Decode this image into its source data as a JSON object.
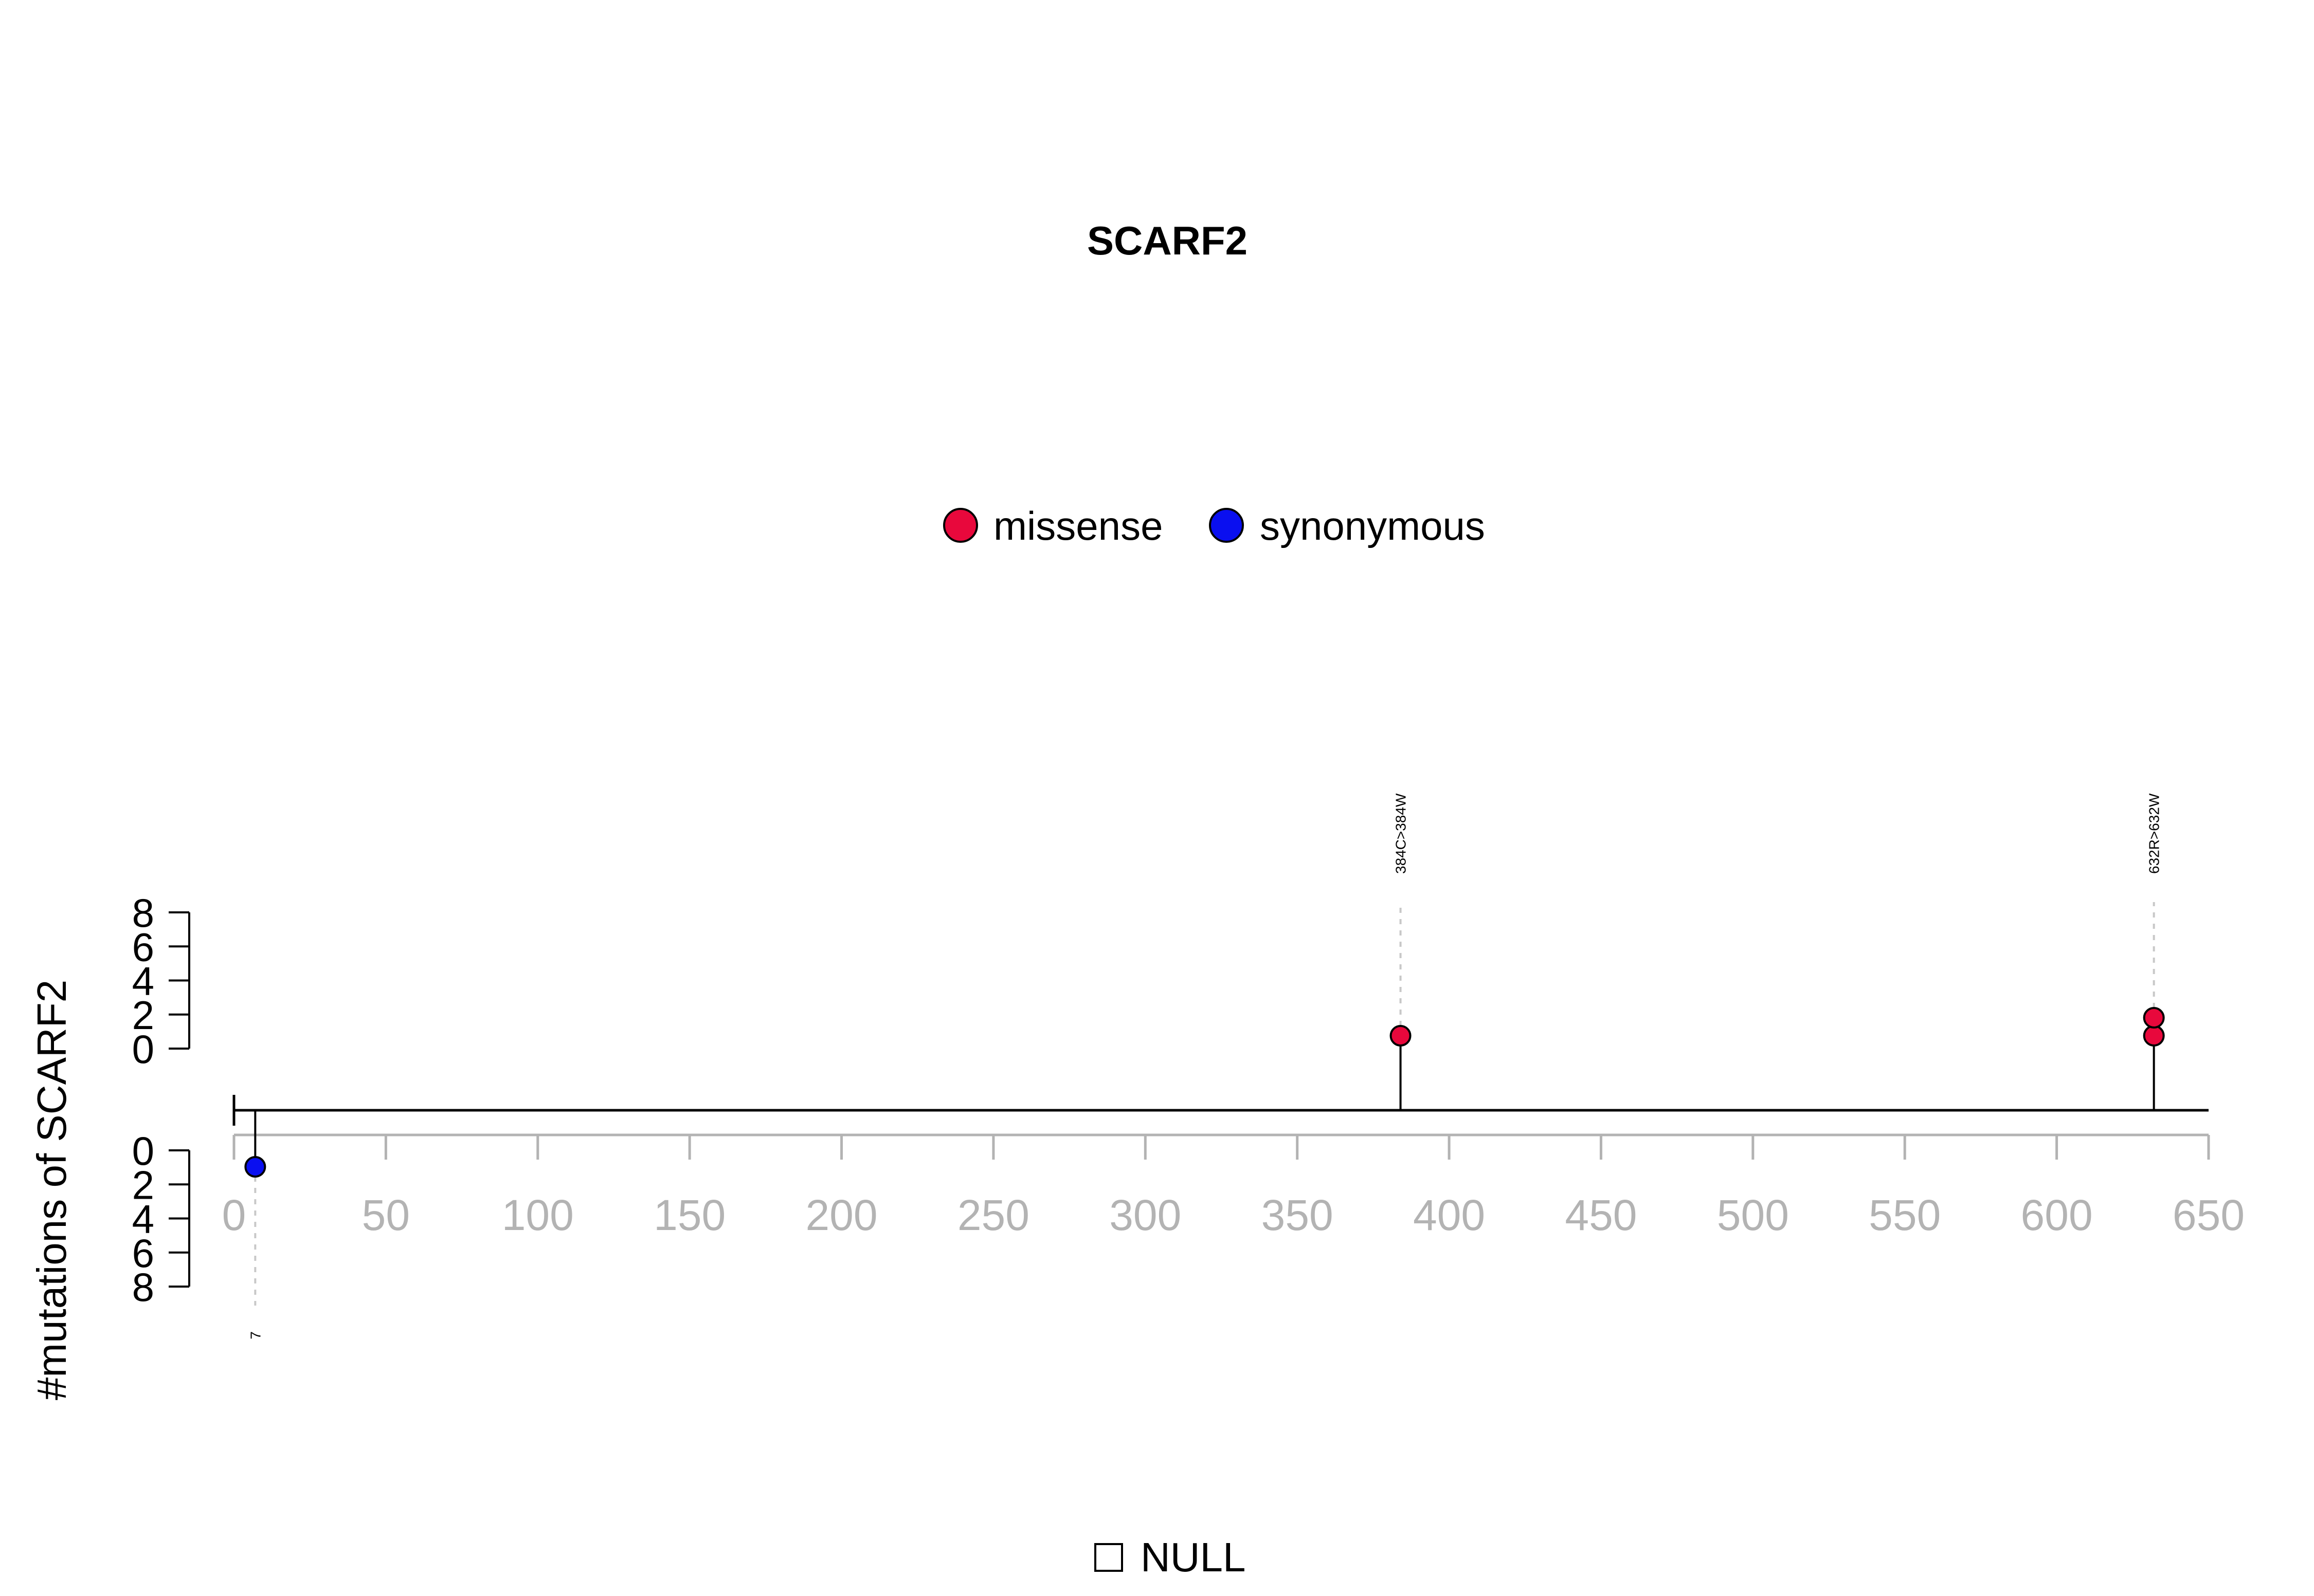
{
  "chart_data": {
    "type": "lollipop",
    "title": "SCARF2",
    "ylabel": "#mutations of SCARF2",
    "xlim": [
      0,
      650
    ],
    "x_ticks": [
      0,
      50,
      100,
      150,
      200,
      250,
      300,
      350,
      400,
      450,
      500,
      550,
      600,
      650
    ],
    "y_ticks": [
      0,
      2,
      4,
      6,
      8
    ],
    "ylim": [
      0,
      8
    ],
    "legend": [
      {
        "label": "missense",
        "color": "#e8083c"
      },
      {
        "label": "synonymous",
        "color": "#0a0ff0"
      }
    ],
    "legend_placement": "top-center",
    "series": [
      {
        "name": "missense",
        "side": "upper",
        "color": "#e8083c",
        "points": [
          {
            "x": 384,
            "count": 1,
            "label": "384C>384W"
          },
          {
            "x": 632,
            "count": 2,
            "label": "632R>632W"
          }
        ]
      },
      {
        "name": "synonymous",
        "side": "lower",
        "color": "#0a0ff0",
        "points": [
          {
            "x": 7,
            "count": 1,
            "label": "7"
          }
        ]
      }
    ],
    "bottom_legend": {
      "label": "NULL"
    }
  }
}
